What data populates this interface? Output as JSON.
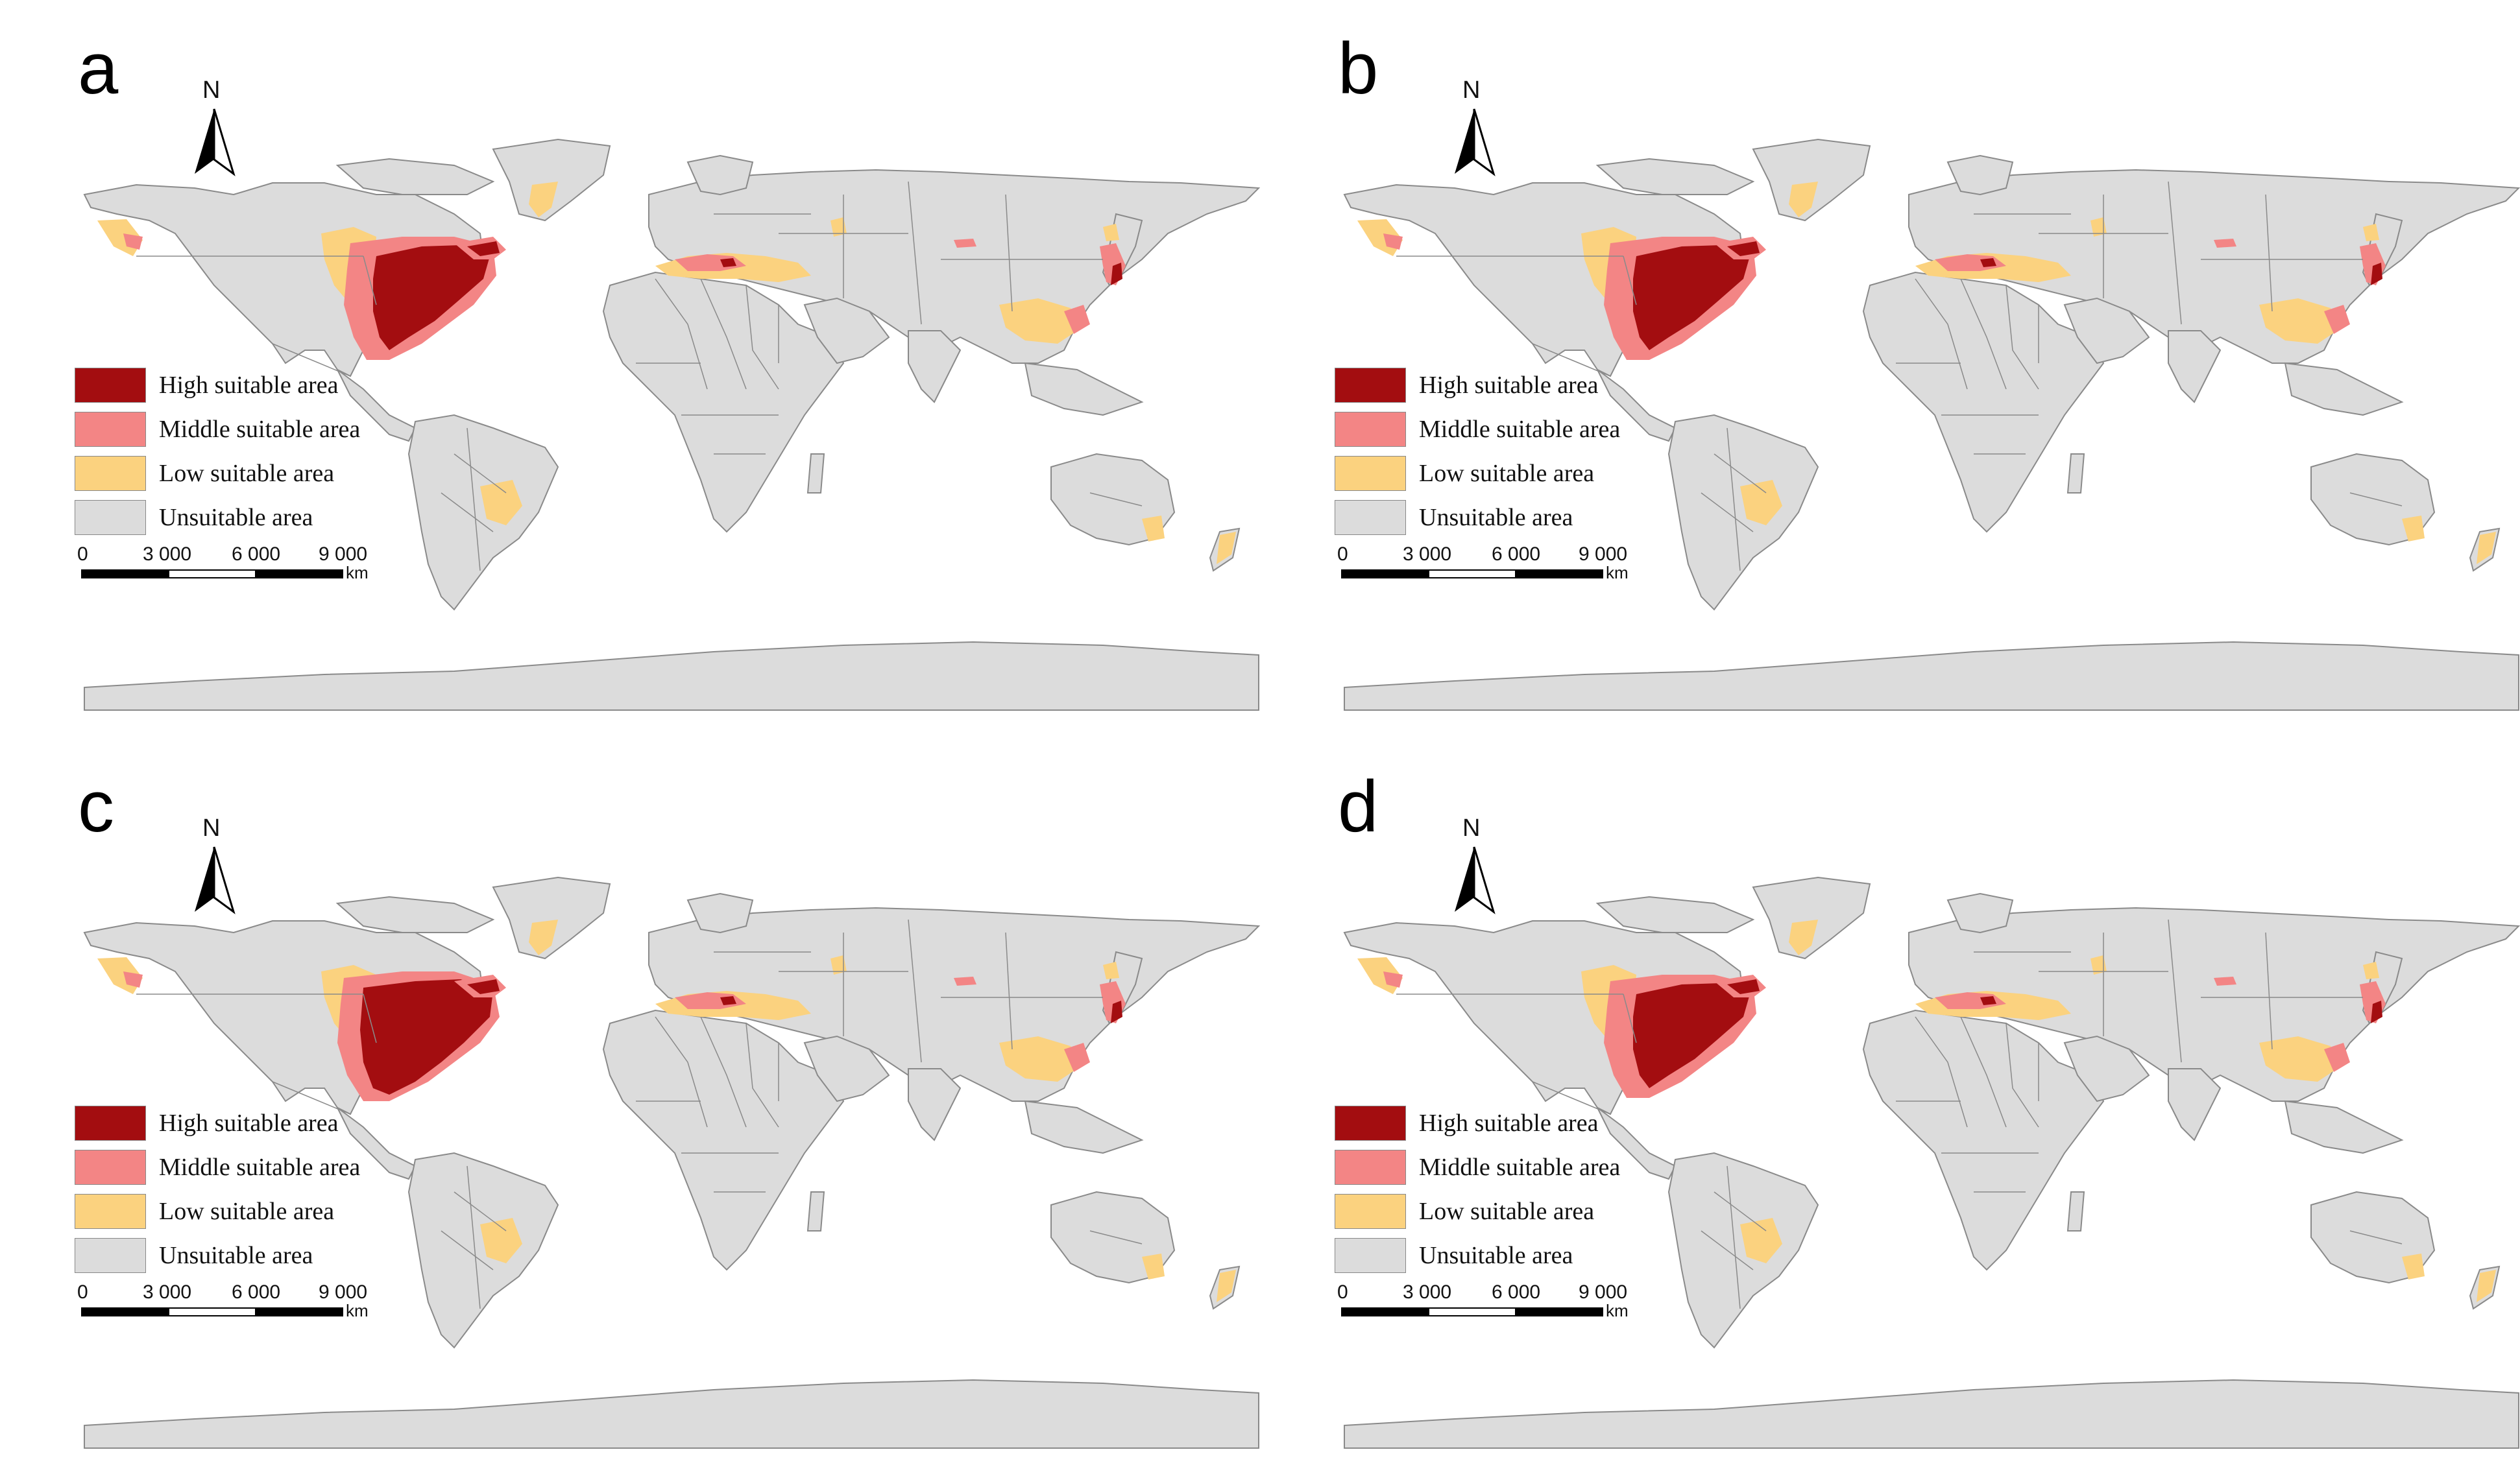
{
  "colors": {
    "high": "#a30d10",
    "middle": "#f38585",
    "low": "#fbd27f",
    "unsuitable": "#dcdcdc",
    "border": "#8a8a8a",
    "ocean": "#ffffff"
  },
  "north_label": "N",
  "legend": [
    {
      "label": "High suitable area",
      "color_key": "high"
    },
    {
      "label": "Middle suitable area",
      "color_key": "middle"
    },
    {
      "label": "Low suitable area",
      "color_key": "low"
    },
    {
      "label": "Unsuitable area",
      "color_key": "unsuitable"
    }
  ],
  "scalebar": {
    "ticks": [
      "0",
      "3 000",
      "6 000",
      "9 000"
    ],
    "unit": "km"
  },
  "panels": [
    {
      "letter": "a",
      "extent": "medium"
    },
    {
      "letter": "b",
      "extent": "medium"
    },
    {
      "letter": "c",
      "extent": "large"
    },
    {
      "letter": "d",
      "extent": "medium"
    }
  ]
}
